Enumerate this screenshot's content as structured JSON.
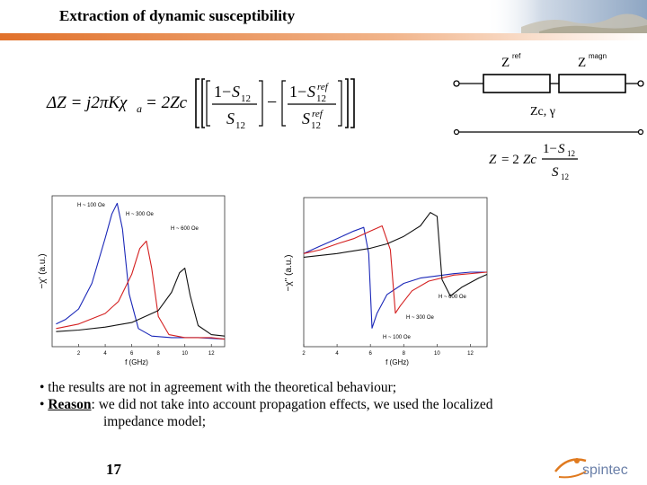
{
  "slide": {
    "title": "Extraction of dynamic susceptibility",
    "page_number": "17"
  },
  "equations": {
    "delta_z": "ΔZ = j2πKχa = 2Zc[(1−S12)/S12 − (1−S12ref)/S12ref]",
    "z": "Z = 2Zc (1−S12)/S12"
  },
  "circuit": {
    "left_impedance": "Z",
    "left_superscript": "ref",
    "right_impedance": "Z",
    "right_superscript": "magn",
    "line_label": "Zc, γ"
  },
  "bullets": {
    "b1": "• the results are not in agreement with the theoretical behaviour;",
    "b2_prefix": "• ",
    "b2_bold": "Reason",
    "b2_rest": ": we did not take into account propagation effects, we used the localized",
    "b2_cont": "impedance model;"
  },
  "logo": {
    "text": "spintec",
    "color": "#6a7fa8",
    "accent": "#e07a1f"
  },
  "colors": {
    "banner": "#e1712b",
    "series_100": "#1a27b8",
    "series_300": "#d42020",
    "series_600": "#111111"
  },
  "chart_data": [
    {
      "type": "line",
      "ylabel": "−χ' (a.u.)",
      "xlabel": "f (GHz)",
      "x_ticks": [
        "2",
        "4",
        "6",
        "8",
        "10",
        "12"
      ],
      "xlim": [
        0,
        13
      ],
      "ylim": [
        0,
        1
      ],
      "series": [
        {
          "name": "H ~ 100 Oe",
          "color": "#1a27b8",
          "x": [
            0.3,
            1,
            2,
            3,
            4,
            4.5,
            4.9,
            5.3,
            5.8,
            6.5,
            7.5,
            9,
            11,
            13
          ],
          "y": [
            0.15,
            0.18,
            0.25,
            0.42,
            0.72,
            0.88,
            0.95,
            0.78,
            0.35,
            0.12,
            0.07,
            0.06,
            0.06,
            0.05
          ]
        },
        {
          "name": "H ~ 300 Oe",
          "color": "#d42020",
          "x": [
            0.3,
            2,
            4,
            5,
            6,
            6.6,
            7.1,
            7.5,
            8,
            8.8,
            10,
            12,
            13
          ],
          "y": [
            0.12,
            0.15,
            0.22,
            0.3,
            0.48,
            0.65,
            0.7,
            0.52,
            0.2,
            0.08,
            0.06,
            0.06,
            0.05
          ]
        },
        {
          "name": "H ~ 600 Oe",
          "color": "#111111",
          "x": [
            0.3,
            2,
            4,
            6,
            8,
            9,
            9.6,
            10,
            10.4,
            11,
            12,
            13
          ],
          "y": [
            0.1,
            0.11,
            0.13,
            0.16,
            0.24,
            0.36,
            0.49,
            0.52,
            0.34,
            0.14,
            0.08,
            0.07
          ]
        }
      ]
    },
    {
      "type": "line",
      "ylabel": "−χ'' (a.u.)",
      "xlabel": "f (GHz)",
      "x_ticks": [
        "2",
        "4",
        "6",
        "8",
        "10",
        "12"
      ],
      "xlim": [
        2,
        13
      ],
      "ylim": [
        -1,
        1
      ],
      "series": [
        {
          "name": "H ~ 100 Oe",
          "color": "#1a27b8",
          "x": [
            2,
            3,
            4,
            5,
            5.6,
            5.9,
            6.1,
            6.4,
            7,
            8,
            9,
            10,
            11,
            12,
            13
          ],
          "y": [
            0.25,
            0.35,
            0.45,
            0.55,
            0.6,
            0.25,
            -0.75,
            -0.55,
            -0.3,
            -0.15,
            -0.08,
            -0.05,
            -0.02,
            0,
            0
          ]
        },
        {
          "name": "H ~ 300 Oe",
          "color": "#d42020",
          "x": [
            2,
            3,
            4,
            5,
            6,
            6.7,
            7.2,
            7.5,
            7.8,
            8.5,
            9.5,
            11,
            13
          ],
          "y": [
            0.25,
            0.3,
            0.38,
            0.45,
            0.55,
            0.62,
            0.3,
            -0.55,
            -0.45,
            -0.25,
            -0.12,
            -0.04,
            0
          ]
        },
        {
          "name": "H ~ 600 Oe",
          "color": "#111111",
          "x": [
            2,
            4,
            6,
            7,
            8,
            9,
            9.6,
            10,
            10.3,
            10.8,
            11.5,
            12.5,
            13
          ],
          "y": [
            0.2,
            0.25,
            0.32,
            0.38,
            0.48,
            0.62,
            0.8,
            0.75,
            -0.1,
            -0.32,
            -0.2,
            -0.08,
            -0.03
          ]
        }
      ],
      "annotations": [
        "H ~ 600 Oe",
        "H ~ 300 Oe",
        "H ~ 100 Oe"
      ]
    }
  ]
}
